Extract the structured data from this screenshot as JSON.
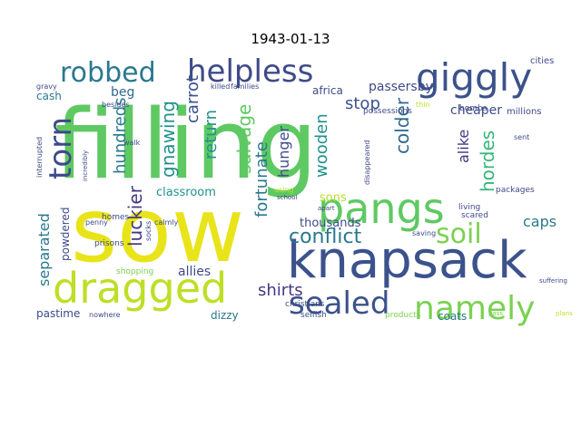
{
  "title": "1943-01-13",
  "words": [
    {
      "text": "filling",
      "color": "#5ec962"
    },
    {
      "text": "sow",
      "color": "#e8e419"
    },
    {
      "text": "knapsack",
      "color": "#3b528b"
    },
    {
      "text": "dragged",
      "color": "#bddf26"
    },
    {
      "text": "pangs",
      "color": "#5ec962"
    },
    {
      "text": "giggly",
      "color": "#3b528b"
    },
    {
      "text": "helpless",
      "color": "#3e4a89"
    },
    {
      "text": "robbed",
      "color": "#2a788e"
    },
    {
      "text": "namely",
      "color": "#7ad151"
    },
    {
      "text": "sealed",
      "color": "#3b528b"
    },
    {
      "text": "torn",
      "color": "#3e4a89"
    },
    {
      "text": "soil",
      "color": "#7ad151"
    },
    {
      "text": "conflict",
      "color": "#2a788e"
    },
    {
      "text": "hordes",
      "color": "#35b779"
    },
    {
      "text": "shirts",
      "color": "#443983"
    },
    {
      "text": "separated",
      "color": "#2a788e"
    },
    {
      "text": "luckier",
      "color": "#443983"
    },
    {
      "text": "gnawing",
      "color": "#21918c"
    },
    {
      "text": "salvage",
      "color": "#5ec962"
    },
    {
      "text": "fortunate",
      "color": "#2a788e"
    },
    {
      "text": "wooden",
      "color": "#21918c"
    },
    {
      "text": "alike",
      "color": "#443983"
    },
    {
      "text": "colder",
      "color": "#31688e"
    },
    {
      "text": "stop",
      "color": "#3b528b"
    },
    {
      "text": "caps",
      "color": "#2a788e"
    },
    {
      "text": "hundreds",
      "color": "#2a788e"
    },
    {
      "text": "return",
      "color": "#21918c"
    },
    {
      "text": "carrot",
      "color": "#3b528b"
    },
    {
      "text": "hunger",
      "color": "#3e4a89"
    },
    {
      "text": "passersby",
      "color": "#3e4a89"
    },
    {
      "text": "cheaper",
      "color": "#3e4a89"
    },
    {
      "text": "thousands",
      "color": "#3e4a89"
    },
    {
      "text": "allies",
      "color": "#3e4a89"
    },
    {
      "text": "powdered",
      "color": "#3e4a89"
    },
    {
      "text": "classroom",
      "color": "#21918c"
    },
    {
      "text": "beg",
      "color": "#31688e"
    },
    {
      "text": "cash",
      "color": "#2a788e"
    },
    {
      "text": "pastime",
      "color": "#3e4a89"
    },
    {
      "text": "dizzy",
      "color": "#2a788e"
    },
    {
      "text": "coats",
      "color": "#2a788e"
    },
    {
      "text": "sons",
      "color": "#b5de2b"
    },
    {
      "text": "africa",
      "color": "#3e4a89"
    },
    {
      "text": "cities",
      "color": "#3e4a89"
    },
    {
      "text": "millions",
      "color": "#3e4a89"
    },
    {
      "text": "bombs",
      "color": "#3e4a89"
    },
    {
      "text": "possessions",
      "color": "#3e4a89"
    },
    {
      "text": "living",
      "color": "#3e4a89"
    },
    {
      "text": "homes",
      "color": "#3e4a89"
    },
    {
      "text": "prisons",
      "color": "#3e4a89"
    },
    {
      "text": "shopping",
      "color": "#7ad151"
    },
    {
      "text": "christians",
      "color": "#3e4a89"
    },
    {
      "text": "selfish",
      "color": "#3e4a89"
    },
    {
      "text": "products",
      "color": "#7ad151"
    },
    {
      "text": "packages",
      "color": "#3e4a89"
    },
    {
      "text": "scared",
      "color": "#3e4a89"
    },
    {
      "text": "families",
      "color": "#3e4a89"
    },
    {
      "text": "killed",
      "color": "#3e4a89"
    },
    {
      "text": "gravy",
      "color": "#3e4a89"
    },
    {
      "text": "walk",
      "color": "#3e4a89"
    },
    {
      "text": "calmly",
      "color": "#3e4a89"
    },
    {
      "text": "penny",
      "color": "#3e4a89"
    },
    {
      "text": "nowhere",
      "color": "#3e4a89"
    },
    {
      "text": "socks",
      "color": "#3e4a89"
    },
    {
      "text": "interrupted",
      "color": "#3e4a89"
    },
    {
      "text": "saving",
      "color": "#3e4a89"
    },
    {
      "text": "using",
      "color": "#bddf26"
    },
    {
      "text": "sent",
      "color": "#3e4a89"
    },
    {
      "text": "thin",
      "color": "#bddf26"
    },
    {
      "text": "besides",
      "color": "#3e4a89"
    },
    {
      "text": "disappeared",
      "color": "#3e4a89"
    },
    {
      "text": "incredibly",
      "color": "#3e4a89"
    },
    {
      "text": "school",
      "color": "#3e4a89"
    },
    {
      "text": "pass",
      "color": "#7ad151"
    },
    {
      "text": "apart",
      "color": "#3e4a89"
    },
    {
      "text": "suffering",
      "color": "#3e4a89"
    },
    {
      "text": "plans",
      "color": "#bddf26"
    }
  ]
}
